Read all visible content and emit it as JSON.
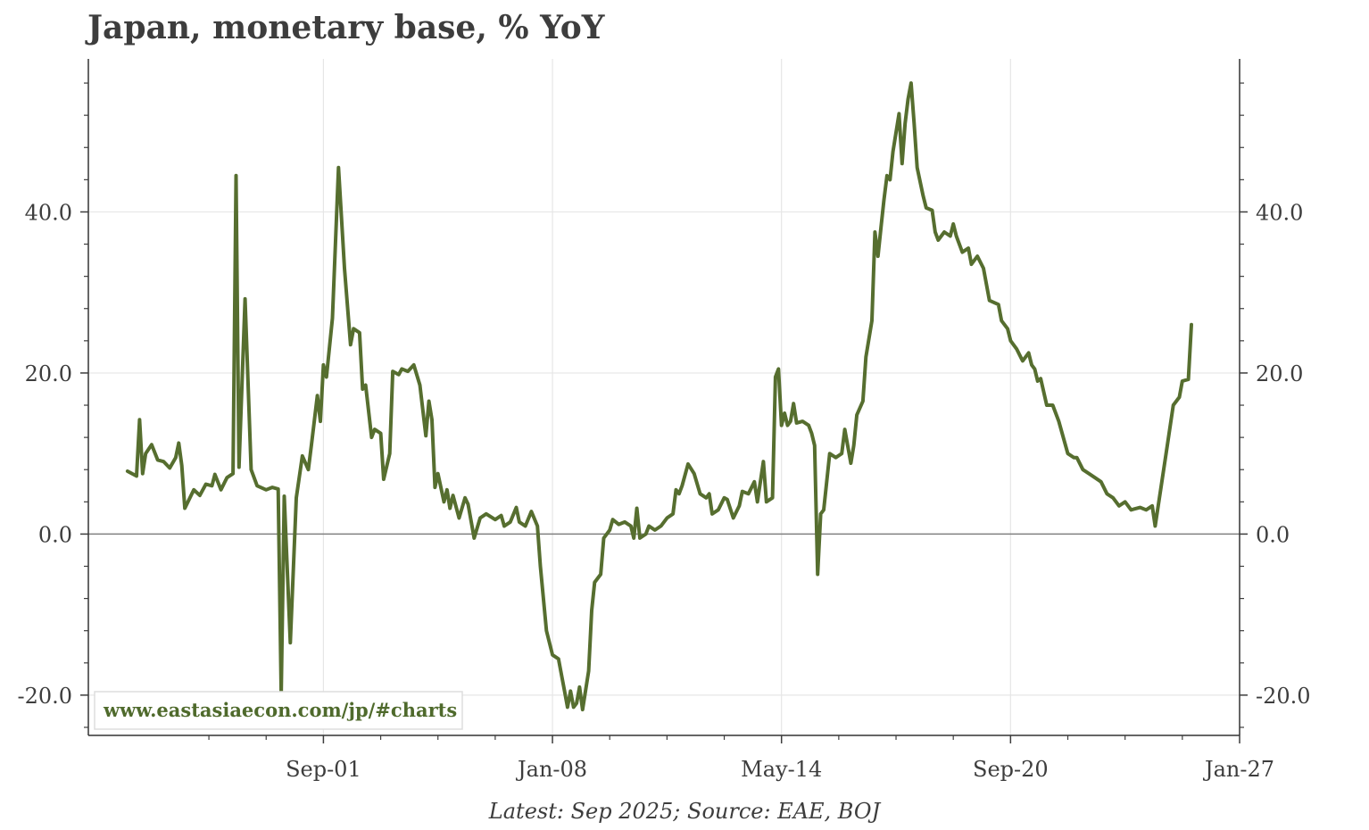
{
  "title": "Japan, monetary base, % YoY",
  "source_note": "Latest: Sep 2025; Source: EAE, BOJ",
  "watermark": "www.eastasiaecon.com/jp/#charts",
  "colors": {
    "line": "#566e2f",
    "text": "#3d3d3d",
    "grid": "#e6e6e6",
    "zero_line": "#808080",
    "watermark": "#4f6a2c"
  },
  "chart_data": {
    "type": "line",
    "title": "Japan, monetary base, % YoY",
    "xlabel": "",
    "ylabel": "",
    "ylim": [
      -25.0,
      59.0
    ],
    "xlim": [
      "1995-03",
      "2027-01"
    ],
    "y_ticks": [
      -20.0,
      0.0,
      20.0,
      40.0
    ],
    "y_tick_labels": [
      "-20.0",
      "0.0",
      "20.0",
      "40.0"
    ],
    "x_ticks": [
      "2001-09",
      "2008-01",
      "2014-05",
      "2020-09",
      "2027-01"
    ],
    "x_tick_labels": [
      "Sep-01",
      "Jan-08",
      "May-14",
      "Sep-20",
      "Jan-27"
    ],
    "grid": true,
    "secondary_y_axis": true,
    "series": [
      {
        "name": "",
        "points": [
          [
            "1996-04",
            7.8
          ],
          [
            "1996-07",
            7.2
          ],
          [
            "1996-08",
            14.2
          ],
          [
            "1996-09",
            7.5
          ],
          [
            "1996-10",
            10.0
          ],
          [
            "1996-12",
            11.1
          ],
          [
            "1997-02",
            9.2
          ],
          [
            "1997-04",
            9.0
          ],
          [
            "1997-06",
            8.2
          ],
          [
            "1997-08",
            9.5
          ],
          [
            "1997-09",
            11.3
          ],
          [
            "1997-10",
            8.5
          ],
          [
            "1997-11",
            3.2
          ],
          [
            "1998-02",
            5.5
          ],
          [
            "1998-04",
            4.8
          ],
          [
            "1998-06",
            6.2
          ],
          [
            "1998-08",
            6.0
          ],
          [
            "1998-09",
            7.4
          ],
          [
            "1998-11",
            5.5
          ],
          [
            "1999-01",
            7.0
          ],
          [
            "1999-03",
            7.5
          ],
          [
            "1999-04",
            44.5
          ],
          [
            "1999-05",
            8.3
          ],
          [
            "1999-07",
            29.2
          ],
          [
            "1999-09",
            8.0
          ],
          [
            "1999-11",
            6.0
          ],
          [
            "2000-02",
            5.5
          ],
          [
            "2000-04",
            5.8
          ],
          [
            "2000-06",
            5.6
          ],
          [
            "2000-07",
            -19.8
          ],
          [
            "2000-08",
            4.7
          ],
          [
            "2000-10",
            -13.5
          ],
          [
            "2000-12",
            4.5
          ],
          [
            "2001-02",
            9.7
          ],
          [
            "2001-04",
            8.0
          ],
          [
            "2001-05",
            11.0
          ],
          [
            "2001-07",
            17.2
          ],
          [
            "2001-08",
            14.0
          ],
          [
            "2001-09",
            21.0
          ],
          [
            "2001-10",
            19.5
          ],
          [
            "2001-12",
            26.8
          ],
          [
            "2002-02",
            45.5
          ],
          [
            "2002-04",
            33.0
          ],
          [
            "2002-06",
            23.5
          ],
          [
            "2002-07",
            25.5
          ],
          [
            "2002-09",
            25.0
          ],
          [
            "2002-10",
            18.0
          ],
          [
            "2002-11",
            18.5
          ],
          [
            "2003-01",
            12.0
          ],
          [
            "2003-02",
            13.0
          ],
          [
            "2003-04",
            12.5
          ],
          [
            "2003-05",
            6.8
          ],
          [
            "2003-07",
            10.0
          ],
          [
            "2003-08",
            20.2
          ],
          [
            "2003-10",
            19.8
          ],
          [
            "2003-11",
            20.5
          ],
          [
            "2004-01",
            20.2
          ],
          [
            "2004-03",
            21.0
          ],
          [
            "2004-05",
            18.5
          ],
          [
            "2004-07",
            12.2
          ],
          [
            "2004-08",
            16.5
          ],
          [
            "2004-09",
            14.2
          ],
          [
            "2004-10",
            5.8
          ],
          [
            "2004-11",
            7.5
          ],
          [
            "2005-01",
            4.0
          ],
          [
            "2005-02",
            5.5
          ],
          [
            "2005-03",
            3.2
          ],
          [
            "2005-04",
            4.8
          ],
          [
            "2005-06",
            2.0
          ],
          [
            "2005-08",
            4.5
          ],
          [
            "2005-09",
            3.7
          ],
          [
            "2005-11",
            -0.5
          ],
          [
            "2006-01",
            2.0
          ],
          [
            "2006-03",
            2.5
          ],
          [
            "2006-06",
            1.8
          ],
          [
            "2006-08",
            2.3
          ],
          [
            "2006-09",
            1.0
          ],
          [
            "2006-11",
            1.5
          ],
          [
            "2007-01",
            3.3
          ],
          [
            "2007-02",
            1.5
          ],
          [
            "2007-04",
            1.0
          ],
          [
            "2007-06",
            2.8
          ],
          [
            "2007-08",
            1.0
          ],
          [
            "2007-09",
            -4.0
          ],
          [
            "2007-11",
            -12.0
          ],
          [
            "2008-01",
            -15.0
          ],
          [
            "2008-03",
            -15.5
          ],
          [
            "2008-05",
            -19.5
          ],
          [
            "2008-06",
            -21.5
          ],
          [
            "2008-07",
            -19.5
          ],
          [
            "2008-08",
            -21.5
          ],
          [
            "2008-09",
            -21.0
          ],
          [
            "2008-10",
            -19.0
          ],
          [
            "2008-11",
            -21.8
          ],
          [
            "2009-01",
            -17.0
          ],
          [
            "2009-02",
            -9.5
          ],
          [
            "2009-03",
            -6.0
          ],
          [
            "2009-05",
            -5.0
          ],
          [
            "2009-06",
            -0.5
          ],
          [
            "2009-08",
            0.5
          ],
          [
            "2009-09",
            1.8
          ],
          [
            "2009-11",
            1.2
          ],
          [
            "2010-01",
            1.5
          ],
          [
            "2010-03",
            1.0
          ],
          [
            "2010-04",
            -0.5
          ],
          [
            "2010-05",
            3.2
          ],
          [
            "2010-06",
            -0.5
          ],
          [
            "2010-08",
            0.0
          ],
          [
            "2010-09",
            1.0
          ],
          [
            "2010-11",
            0.5
          ],
          [
            "2011-01",
            1.0
          ],
          [
            "2011-03",
            2.0
          ],
          [
            "2011-05",
            2.5
          ],
          [
            "2011-06",
            5.5
          ],
          [
            "2011-07",
            5.0
          ],
          [
            "2011-08",
            6.0
          ],
          [
            "2011-10",
            8.7
          ],
          [
            "2011-12",
            7.5
          ],
          [
            "2012-02",
            5.0
          ],
          [
            "2012-04",
            4.5
          ],
          [
            "2012-05",
            5.0
          ],
          [
            "2012-06",
            2.5
          ],
          [
            "2012-08",
            3.0
          ],
          [
            "2012-10",
            4.5
          ],
          [
            "2012-11",
            4.3
          ],
          [
            "2013-01",
            2.0
          ],
          [
            "2013-03",
            3.5
          ],
          [
            "2013-04",
            5.3
          ],
          [
            "2013-06",
            5.0
          ],
          [
            "2013-08",
            6.5
          ],
          [
            "2013-09",
            4.0
          ],
          [
            "2013-11",
            9.0
          ],
          [
            "2013-12",
            4.0
          ],
          [
            "2014-02",
            4.5
          ],
          [
            "2014-03",
            19.5
          ],
          [
            "2014-04",
            20.5
          ],
          [
            "2014-05",
            13.5
          ],
          [
            "2014-06",
            15.0
          ],
          [
            "2014-07",
            13.5
          ],
          [
            "2014-08",
            14.0
          ],
          [
            "2014-09",
            16.2
          ],
          [
            "2014-10",
            13.8
          ],
          [
            "2014-12",
            14.0
          ],
          [
            "2015-02",
            13.5
          ],
          [
            "2015-03",
            12.5
          ],
          [
            "2015-04",
            11.0
          ],
          [
            "2015-05",
            -5.0
          ],
          [
            "2015-06",
            2.5
          ],
          [
            "2015-07",
            3.0
          ],
          [
            "2015-09",
            10.0
          ],
          [
            "2015-11",
            9.5
          ],
          [
            "2016-01",
            10.0
          ],
          [
            "2016-02",
            13.0
          ],
          [
            "2016-04",
            8.8
          ],
          [
            "2016-05",
            11.0
          ],
          [
            "2016-06",
            14.8
          ],
          [
            "2016-08",
            16.5
          ],
          [
            "2016-09",
            22.0
          ],
          [
            "2016-11",
            26.5
          ],
          [
            "2016-12",
            37.5
          ],
          [
            "2017-01",
            34.5
          ],
          [
            "2017-02",
            38.0
          ],
          [
            "2017-03",
            41.5
          ],
          [
            "2017-04",
            44.5
          ],
          [
            "2017-05",
            44.0
          ],
          [
            "2017-06",
            47.5
          ],
          [
            "2017-08",
            52.2
          ],
          [
            "2017-09",
            46.0
          ],
          [
            "2017-10",
            51.0
          ],
          [
            "2017-11",
            54.0
          ],
          [
            "2017-12",
            56.0
          ],
          [
            "2018-01",
            51.0
          ],
          [
            "2018-02",
            45.5
          ],
          [
            "2018-04",
            42.0
          ],
          [
            "2018-05",
            40.5
          ],
          [
            "2018-07",
            40.2
          ],
          [
            "2018-08",
            37.5
          ],
          [
            "2018-09",
            36.5
          ],
          [
            "2018-11",
            37.5
          ],
          [
            "2019-01",
            37.0
          ],
          [
            "2019-02",
            38.5
          ],
          [
            "2019-03",
            37.0
          ],
          [
            "2019-05",
            35.0
          ],
          [
            "2019-07",
            35.5
          ],
          [
            "2019-08",
            33.5
          ],
          [
            "2019-10",
            34.5
          ],
          [
            "2019-12",
            33.0
          ],
          [
            "2020-02",
            29.0
          ],
          [
            "2020-05",
            28.5
          ],
          [
            "2020-06",
            26.5
          ],
          [
            "2020-08",
            25.5
          ],
          [
            "2020-09",
            24.0
          ],
          [
            "2020-11",
            23.0
          ],
          [
            "2021-01",
            21.5
          ],
          [
            "2021-03",
            22.5
          ],
          [
            "2021-04",
            21.0
          ],
          [
            "2021-05",
            20.5
          ],
          [
            "2021-06",
            19.0
          ],
          [
            "2021-07",
            19.3
          ],
          [
            "2021-09",
            16.0
          ],
          [
            "2021-11",
            16.0
          ],
          [
            "2022-01",
            14.0
          ],
          [
            "2022-04",
            10.0
          ],
          [
            "2022-06",
            9.5
          ],
          [
            "2022-07",
            9.5
          ],
          [
            "2022-09",
            8.0
          ],
          [
            "2022-11",
            7.5
          ],
          [
            "2023-01",
            7.0
          ],
          [
            "2023-03",
            6.5
          ],
          [
            "2023-05",
            5.0
          ],
          [
            "2023-07",
            4.5
          ],
          [
            "2023-09",
            3.5
          ],
          [
            "2023-11",
            4.0
          ],
          [
            "2024-01",
            3.0
          ],
          [
            "2024-04",
            3.3
          ],
          [
            "2024-06",
            3.0
          ],
          [
            "2024-08",
            3.5
          ],
          [
            "2024-09",
            1.0
          ],
          [
            "2024-10",
            3.5
          ],
          [
            "2024-11",
            6.0
          ],
          [
            "2025-01",
            11.0
          ],
          [
            "2025-03",
            16.0
          ],
          [
            "2025-05",
            17.0
          ],
          [
            "2025-06",
            19.0
          ],
          [
            "2025-08",
            19.2
          ],
          [
            "2025-09",
            26.0
          ]
        ]
      },
      {
        "name": "",
        "points": [
          [
            "2025-09",
            26.0
          ]
        ]
      }
    ]
  }
}
